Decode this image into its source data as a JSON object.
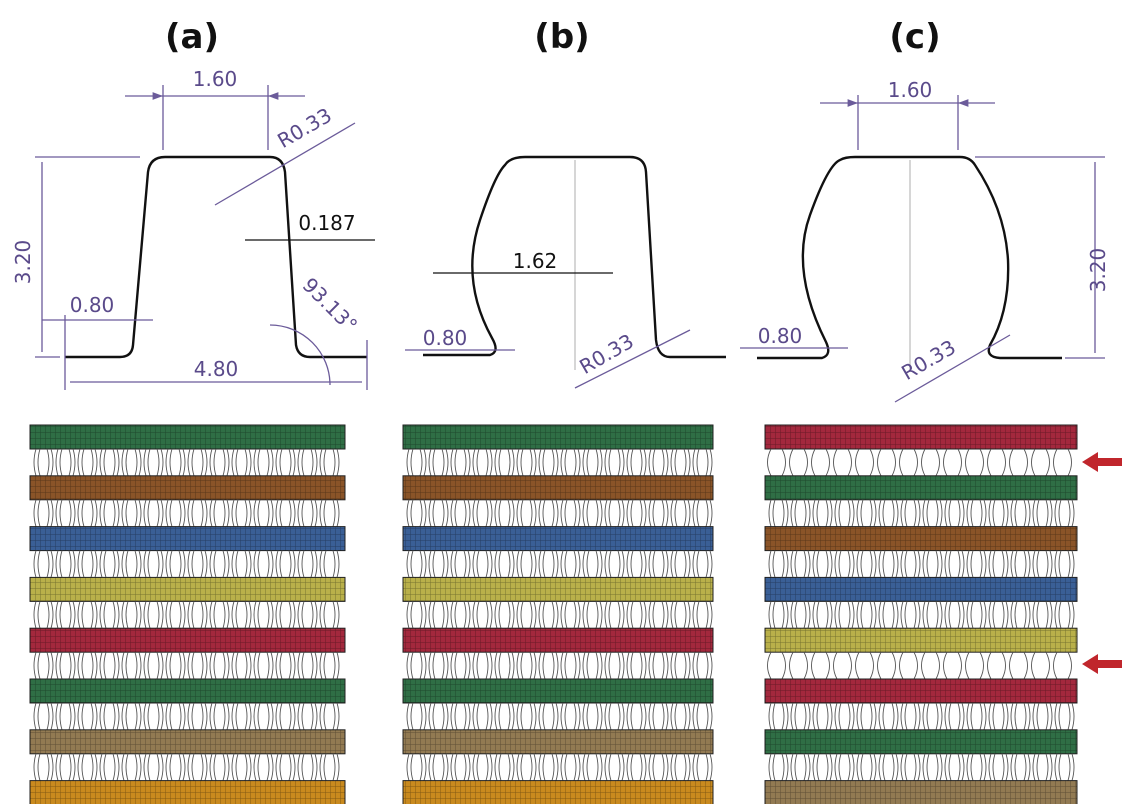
{
  "panels": [
    {
      "label": "(a)",
      "dimensions": [
        "1.60",
        "R0.33",
        "0.187",
        "3.20",
        "0.80",
        "93.13°",
        "4.80"
      ],
      "layers": [
        "#2f6e45",
        "#8a5428",
        "#3a5f96",
        "#b9b04a",
        "#a3283d",
        "#2f6e45",
        "#927a52",
        "#c98a1e"
      ]
    },
    {
      "label": "(b)",
      "dimensions": [
        "1.62",
        "0.80",
        "R0.33"
      ],
      "layers": [
        "#2f6e45",
        "#8a5428",
        "#3a5f96",
        "#b9b04a",
        "#a3283d",
        "#2f6e45",
        "#927a52",
        "#c98a1e"
      ]
    },
    {
      "label": "(c)",
      "dimensions": [
        "1.60",
        "3.20",
        "0.80",
        "R0.33"
      ],
      "layers": [
        "#a3283d",
        "#2f6e45",
        "#8a5428",
        "#3a5f96",
        "#b9b04a",
        "#a3283d",
        "#2f6e45",
        "#927a52"
      ]
    }
  ]
}
